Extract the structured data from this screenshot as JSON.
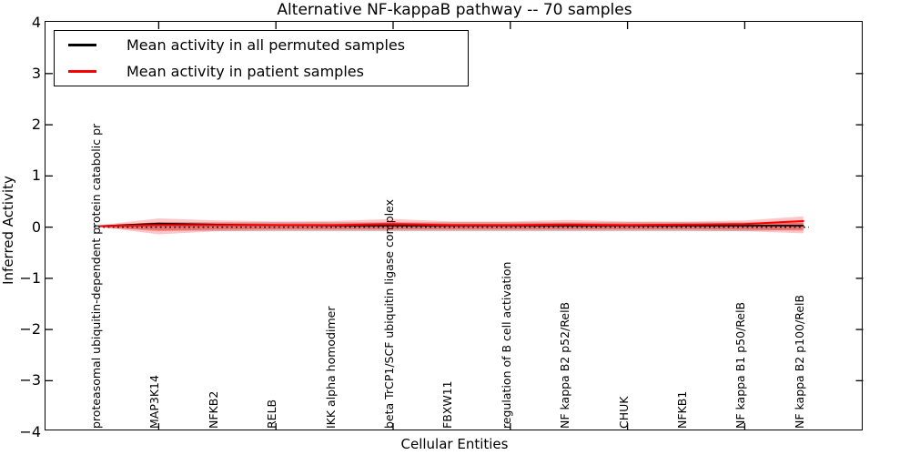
{
  "figure": {
    "title": "Alternative NF-kappaB pathway -- 70 samples",
    "xlabel": "Cellular Entities",
    "ylabel": "Inferred Activity"
  },
  "legend": {
    "entries": [
      {
        "label": "Mean activity in all permuted samples",
        "color": "#000000"
      },
      {
        "label": "Mean activity in patient samples",
        "color": "#ff0000"
      }
    ]
  },
  "chart_data": {
    "type": "line",
    "title": "Alternative NF-kappaB pathway -- 70 samples",
    "xlabel": "Cellular Entities",
    "ylabel": "Inferred Activity",
    "ylim": [
      -4,
      4
    ],
    "yticks": [
      4,
      3,
      2,
      1,
      0,
      -1,
      -2,
      -3,
      -4
    ],
    "xticks_shown": [
      1,
      3,
      5,
      7,
      9,
      11
    ],
    "grid": false,
    "legend_position": "upper left",
    "categories": [
      "proteasomal ubiquitin-dependent protein catabolic pr",
      "MAP3K14",
      "NFKB2",
      "RELB",
      "IKK alpha homodimer",
      "beta TrCP1/SCF ubiquitin ligase complex",
      "FBXW11",
      "regulation of B cell activation",
      "NF kappa B2 p52/RelB",
      "CHUK",
      "NFKB1",
      "NF kappa B1 p50/RelB",
      "NF kappa B2 p100/RelB"
    ],
    "series": [
      {
        "name": "Mean activity in all permuted samples",
        "color": "#000000",
        "style": "solid",
        "width": 1.6,
        "values": [
          0.02,
          0.07,
          0.05,
          0.04,
          0.03,
          0.03,
          0.03,
          0.03,
          0.03,
          0.03,
          0.03,
          0.03,
          0.03
        ]
      },
      {
        "name": "Mean activity in patient samples",
        "color": "#ff0000",
        "style": "solid",
        "width": 2,
        "values": [
          0.02,
          0.04,
          0.04,
          0.04,
          0.04,
          0.06,
          0.04,
          0.04,
          0.05,
          0.04,
          0.05,
          0.06,
          0.12
        ]
      }
    ],
    "zero_line": {
      "value": 0,
      "style": "dotted",
      "color": "#000000"
    },
    "bands": [
      {
        "name": "permuted-samples-range",
        "color": "rgba(0,0,0,0.16)",
        "upper": [
          0.03,
          0.1,
          0.1,
          0.1,
          0.1,
          0.1,
          0.1,
          0.1,
          0.1,
          0.1,
          0.1,
          0.1,
          0.08
        ],
        "lower": [
          0.0,
          -0.06,
          -0.08,
          -0.08,
          -0.08,
          -0.08,
          -0.08,
          -0.08,
          -0.08,
          -0.08,
          -0.08,
          -0.08,
          -0.05
        ]
      },
      {
        "name": "patient-samples-range-outer",
        "color": "rgba(255,0,0,0.22)",
        "upper": [
          0.04,
          0.17,
          0.13,
          0.11,
          0.12,
          0.16,
          0.11,
          0.11,
          0.14,
          0.11,
          0.11,
          0.13,
          0.21
        ],
        "lower": [
          0.0,
          -0.14,
          -0.08,
          -0.07,
          -0.07,
          -0.07,
          -0.07,
          -0.07,
          -0.07,
          -0.07,
          -0.07,
          -0.08,
          -0.12
        ]
      },
      {
        "name": "patient-samples-range-inner",
        "color": "rgba(255,0,0,0.30)",
        "upper": [
          0.03,
          0.1,
          0.08,
          0.07,
          0.07,
          0.09,
          0.07,
          0.07,
          0.08,
          0.07,
          0.07,
          0.08,
          0.13
        ],
        "lower": [
          0.0,
          -0.08,
          -0.05,
          -0.04,
          -0.04,
          -0.04,
          -0.04,
          -0.04,
          -0.04,
          -0.04,
          -0.04,
          -0.05,
          -0.07
        ]
      }
    ]
  }
}
